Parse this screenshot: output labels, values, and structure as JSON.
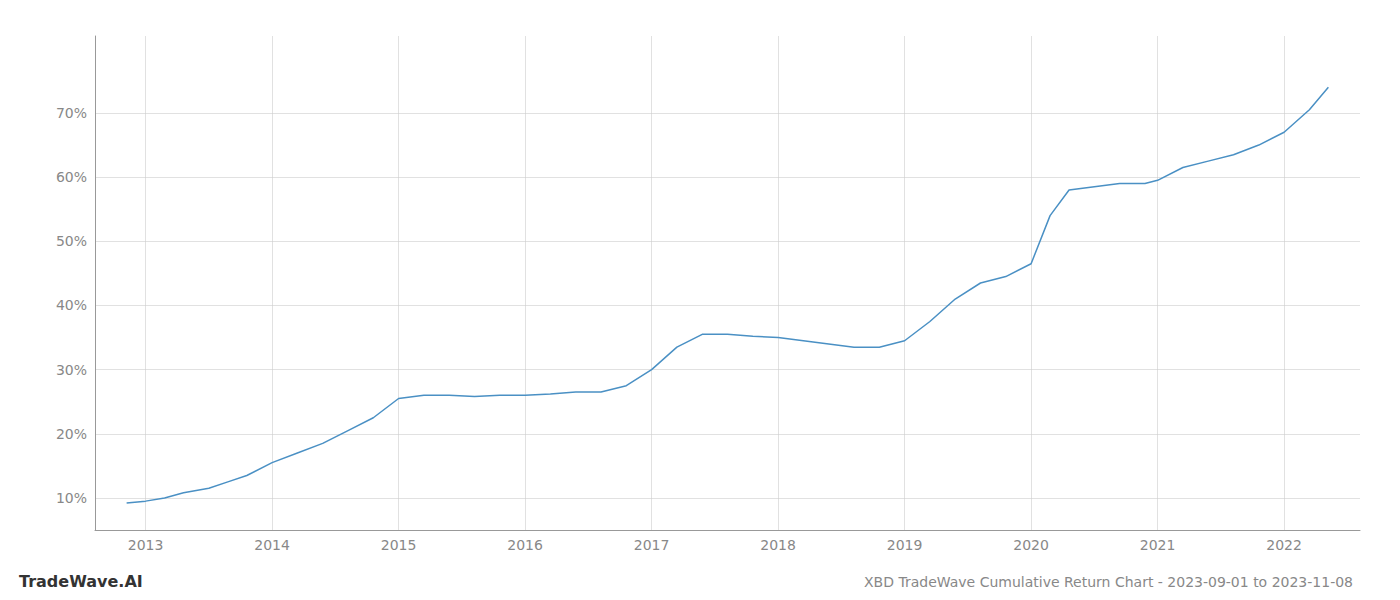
{
  "chart_data": {
    "type": "line",
    "title": "XBD TradeWave Cumulative Return Chart - 2023-09-01 to 2023-11-08",
    "annotations": [
      "TradeWave.AI"
    ],
    "x": [
      2012.85,
      2013.0,
      2013.15,
      2013.3,
      2013.5,
      2013.65,
      2013.8,
      2014.0,
      2014.2,
      2014.4,
      2014.6,
      2014.8,
      2015.0,
      2015.2,
      2015.4,
      2015.6,
      2015.8,
      2016.0,
      2016.2,
      2016.4,
      2016.6,
      2016.8,
      2017.0,
      2017.2,
      2017.4,
      2017.6,
      2017.8,
      2018.0,
      2018.2,
      2018.4,
      2018.6,
      2018.8,
      2019.0,
      2019.2,
      2019.4,
      2019.6,
      2019.8,
      2020.0,
      2020.15,
      2020.3,
      2020.5,
      2020.7,
      2020.9,
      2021.0,
      2021.2,
      2021.4,
      2021.6,
      2021.8,
      2022.0,
      2022.2,
      2022.35
    ],
    "values": [
      9.2,
      9.5,
      10.0,
      10.8,
      11.5,
      12.5,
      13.5,
      15.5,
      17.0,
      18.5,
      20.5,
      22.5,
      25.5,
      26.0,
      26.0,
      25.8,
      26.0,
      26.0,
      26.2,
      26.5,
      26.5,
      27.5,
      30.0,
      33.5,
      35.5,
      35.5,
      35.2,
      35.0,
      34.5,
      34.0,
      33.5,
      33.5,
      34.5,
      37.5,
      41.0,
      43.5,
      44.5,
      46.5,
      54.0,
      58.0,
      58.5,
      59.0,
      59.0,
      59.5,
      61.5,
      62.5,
      63.5,
      65.0,
      67.0,
      70.5,
      74.0
    ],
    "color": "#4a90c4",
    "xlim": [
      2012.6,
      2022.6
    ],
    "ylim": [
      5,
      82
    ],
    "xticks": [
      2013,
      2014,
      2015,
      2016,
      2017,
      2018,
      2019,
      2020,
      2021,
      2022
    ],
    "yticks": [
      {
        "value": 10,
        "label": "10%"
      },
      {
        "value": 20,
        "label": "20%"
      },
      {
        "value": 30,
        "label": "30%"
      },
      {
        "value": 40,
        "label": "40%"
      },
      {
        "value": 50,
        "label": "50%"
      },
      {
        "value": 60,
        "label": "60%"
      },
      {
        "value": 70,
        "label": "70%"
      }
    ],
    "grid": true
  }
}
